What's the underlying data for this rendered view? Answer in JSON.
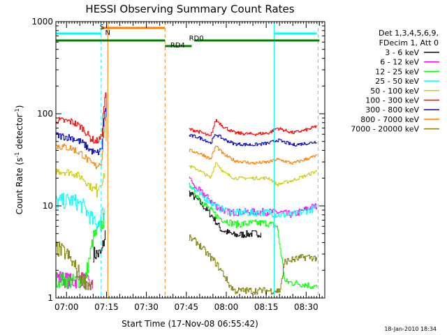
{
  "chart_data": {
    "type": "line",
    "title": "HESSI Observing Summary Count Rates",
    "xlabel": "Start Time (17-Nov-08 06:55:42)",
    "ylabel_main": "Count Rate (s",
    "ylabel_sup1": "-1",
    "ylabel_mid": " detector",
    "ylabel_sup2": "-1",
    "ylabel_end": ")",
    "yscale": "log",
    "ylim": [
      1,
      1000
    ],
    "xlim_min": [
      -4,
      97
    ],
    "y_ticks": [
      {
        "value": 1,
        "label": "1"
      },
      {
        "value": 10,
        "label": "10"
      },
      {
        "value": 100,
        "label": "100"
      },
      {
        "value": 1000,
        "label": "1000"
      }
    ],
    "x_ticks": [
      {
        "t": 0,
        "label": "07:00"
      },
      {
        "t": 15,
        "label": "07:15"
      },
      {
        "t": 30,
        "label": "07:30"
      },
      {
        "t": 45,
        "label": "07:45"
      },
      {
        "t": 60,
        "label": "08:00"
      },
      {
        "t": 75,
        "label": "08:15"
      },
      {
        "t": 90,
        "label": "08:30"
      }
    ],
    "legend_header": [
      "Det 1,3,4,5,6,9,",
      "FDecim 1, Att 0"
    ],
    "series": [
      {
        "name": "3 - 6 keV",
        "color": "#000000",
        "pre": [
          [
            10,
            3.0
          ],
          [
            13,
            3.0
          ],
          [
            14.5,
            5
          ]
        ],
        "post": [
          [
            46,
            14
          ],
          [
            50,
            11
          ],
          [
            55,
            7.5
          ],
          [
            58,
            5.5
          ],
          [
            63,
            4.8
          ],
          [
            70,
            5.0
          ],
          [
            73,
            5.0
          ]
        ]
      },
      {
        "name": "6 - 12 keV",
        "color": "#ff00ff",
        "pre": [
          [
            -4,
            1.7
          ],
          [
            2,
            1.5
          ],
          [
            6,
            1.6
          ],
          [
            10,
            1.3
          ]
        ],
        "post": [
          [
            46,
            21
          ],
          [
            48,
            16
          ],
          [
            52,
            13
          ],
          [
            57,
            9.5
          ],
          [
            61,
            8.5
          ],
          [
            70,
            8.6
          ],
          [
            76,
            8.6
          ],
          [
            80,
            8.5
          ],
          [
            85,
            8.0
          ],
          [
            91,
            9.5
          ],
          [
            94,
            10
          ]
        ]
      },
      {
        "name": "12 - 25 keV",
        "color": "#00ff00",
        "pre": [
          [
            -4,
            1.6
          ],
          [
            2,
            1.5
          ],
          [
            7,
            1.6
          ],
          [
            10,
            4.5
          ],
          [
            12,
            5.5
          ],
          [
            14,
            7
          ]
        ],
        "post": [
          [
            46,
            17
          ],
          [
            49,
            13
          ],
          [
            53,
            9.5
          ],
          [
            57,
            7.5
          ],
          [
            63,
            6.3
          ],
          [
            70,
            6.5
          ],
          [
            75,
            6.5
          ],
          [
            79,
            6.0
          ],
          [
            82,
            1.5
          ],
          [
            90,
            1.4
          ],
          [
            94,
            1.3
          ]
        ]
      },
      {
        "name": "25 - 50 keV",
        "color": "#00ffff",
        "pre": [
          [
            -4,
            11
          ],
          [
            2,
            11.5
          ],
          [
            6,
            10
          ],
          [
            9,
            7.5
          ],
          [
            11,
            6
          ],
          [
            13,
            8
          ],
          [
            14.5,
            9
          ]
        ],
        "post": [
          [
            46,
            17
          ],
          [
            49,
            14
          ],
          [
            53,
            11.5
          ],
          [
            57,
            9.5
          ],
          [
            62,
            8.5
          ],
          [
            70,
            8.4
          ],
          [
            76,
            8.5
          ],
          [
            79,
            8
          ],
          [
            85,
            8.0
          ],
          [
            91,
            9
          ],
          [
            94,
            9.5
          ]
        ]
      },
      {
        "name": "50 - 100 keV",
        "color": "#cccc00",
        "pre": [
          [
            -4,
            24
          ],
          [
            2,
            23
          ],
          [
            6,
            20
          ],
          [
            9,
            16
          ],
          [
            11,
            14.5
          ],
          [
            13,
            18
          ],
          [
            14.5,
            22
          ]
        ],
        "post": [
          [
            46,
            27
          ],
          [
            49,
            25
          ],
          [
            52,
            22
          ],
          [
            54,
            20
          ],
          [
            56,
            30
          ],
          [
            59,
            23
          ],
          [
            63,
            20
          ],
          [
            70,
            20
          ],
          [
            76,
            20
          ],
          [
            79,
            17
          ],
          [
            85,
            19
          ],
          [
            91,
            22
          ],
          [
            94,
            24
          ]
        ]
      },
      {
        "name": "100 - 300 keV",
        "color": "#ff0000",
        "pre": [
          [
            -4,
            85
          ],
          [
            2,
            82
          ],
          [
            6,
            70
          ],
          [
            9,
            54
          ],
          [
            11,
            50
          ],
          [
            13,
            55
          ],
          [
            14.5,
            180
          ],
          [
            15,
            90
          ]
        ],
        "post": [
          [
            46,
            68
          ],
          [
            49,
            65
          ],
          [
            52,
            60
          ],
          [
            54,
            56
          ],
          [
            56,
            86
          ],
          [
            59,
            72
          ],
          [
            63,
            62
          ],
          [
            70,
            60
          ],
          [
            76,
            62
          ],
          [
            79,
            70
          ],
          [
            85,
            62
          ],
          [
            91,
            68
          ],
          [
            94,
            74
          ]
        ]
      },
      {
        "name": "300 - 800 keV",
        "color": "#0000cc",
        "pre": [
          [
            -4,
            58
          ],
          [
            2,
            55
          ],
          [
            6,
            48
          ],
          [
            9,
            40
          ],
          [
            11,
            37
          ],
          [
            13,
            40
          ],
          [
            14.5,
            130
          ],
          [
            15,
            60
          ]
        ],
        "post": [
          [
            46,
            58
          ],
          [
            49,
            56
          ],
          [
            52,
            52
          ],
          [
            54,
            48
          ],
          [
            56,
            60
          ],
          [
            59,
            53
          ],
          [
            63,
            47
          ],
          [
            70,
            46
          ],
          [
            76,
            48
          ],
          [
            79,
            52
          ],
          [
            85,
            46
          ],
          [
            91,
            48
          ],
          [
            94,
            50
          ]
        ]
      },
      {
        "name": "800 - 7000 keV",
        "color": "#ff8000",
        "pre": [
          [
            -4,
            45
          ],
          [
            2,
            42
          ],
          [
            6,
            36
          ],
          [
            9,
            29
          ],
          [
            11,
            27
          ],
          [
            13,
            30
          ],
          [
            14.5,
            100
          ],
          [
            15,
            45
          ]
        ],
        "post": [
          [
            46,
            40
          ],
          [
            49,
            38
          ],
          [
            52,
            35
          ],
          [
            54,
            32
          ],
          [
            56,
            45
          ],
          [
            59,
            36
          ],
          [
            63,
            31
          ],
          [
            70,
            29
          ],
          [
            76,
            30
          ],
          [
            79,
            32
          ],
          [
            85,
            29
          ],
          [
            91,
            33
          ],
          [
            94,
            35
          ]
        ]
      },
      {
        "name": "7000 - 20000 keV",
        "color": "#808000",
        "pre": [
          [
            -4,
            3.5
          ],
          [
            0,
            3.0
          ],
          [
            3,
            2.2
          ],
          [
            6,
            1.6
          ],
          [
            10,
            1.3
          ]
        ],
        "post": [
          [
            46,
            4.5
          ],
          [
            49,
            4.0
          ],
          [
            52,
            3.2
          ],
          [
            56,
            2.4
          ],
          [
            59,
            1.8
          ],
          [
            61,
            1.4
          ],
          [
            63,
            1.2
          ],
          [
            80,
            1.2
          ],
          [
            82,
            2.5
          ],
          [
            90,
            2.8
          ],
          [
            94,
            2.7
          ]
        ]
      }
    ],
    "annotations": [
      {
        "label": "S",
        "t": 12.5,
        "color": "#ff8000"
      },
      {
        "label": "N",
        "t": 14.5,
        "color": "#00ffff"
      },
      {
        "label": "RD0",
        "t": 46,
        "color": "#008000"
      },
      {
        "label": "RD4",
        "t": 39,
        "color": "#008000"
      }
    ],
    "flag_bars": [
      {
        "color": "#00ffff",
        "y": 1,
        "from": -4,
        "to": 13
      },
      {
        "color": "#00ffff",
        "y": 1,
        "from": 78,
        "to": 94
      },
      {
        "color": "#ff8000",
        "y": 0,
        "from": 13,
        "to": 37
      },
      {
        "color": "#008000",
        "y": 2,
        "from": -4,
        "to": 37
      },
      {
        "color": "#008000",
        "y": 2,
        "from": 48,
        "to": 95
      },
      {
        "color": "#008000",
        "y": 3,
        "from": 37,
        "to": 47
      }
    ],
    "vlines": [
      {
        "t": 13.0,
        "color": "#00ffff",
        "dash": true
      },
      {
        "t": 15.5,
        "color": "#ff8000",
        "dash": false
      },
      {
        "t": 37.0,
        "color": "#ff8000",
        "dash": true
      },
      {
        "t": 78.0,
        "color": "#00ffff",
        "dash": false
      },
      {
        "t": 94.5,
        "color": "#00ffff",
        "dash": true
      }
    ],
    "stamp": "18-Jan-2010 18:34"
  }
}
